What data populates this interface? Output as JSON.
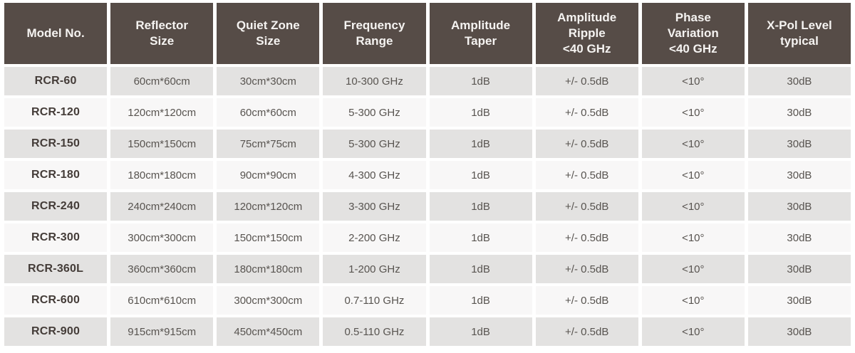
{
  "colors": {
    "header_bg": "#564c47",
    "header_text": "#f5f3f1",
    "row_odd_bg": "#e3e2e1",
    "row_even_bg": "#f8f7f7",
    "model_text": "#443c38",
    "cell_text": "#585450",
    "page_bg": "#ffffff"
  },
  "table": {
    "columns": [
      {
        "key": "model",
        "label": "Model No."
      },
      {
        "key": "reflector_size",
        "label": "Reflector\nSize"
      },
      {
        "key": "quiet_zone_size",
        "label": "Quiet Zone\nSize"
      },
      {
        "key": "frequency_range",
        "label": "Frequency\nRange"
      },
      {
        "key": "amplitude_taper",
        "label": "Amplitude\nTaper"
      },
      {
        "key": "amplitude_ripple",
        "label": "Amplitude\nRipple\n<40 GHz"
      },
      {
        "key": "phase_variation",
        "label": "Phase\nVariation\n<40 GHz"
      },
      {
        "key": "xpol_level",
        "label": "X-Pol Level\ntypical"
      }
    ],
    "rows": [
      {
        "model": "RCR-60",
        "reflector_size": "60cm*60cm",
        "quiet_zone_size": "30cm*30cm",
        "frequency_range": "10-300 GHz",
        "amplitude_taper": "1dB",
        "amplitude_ripple": "+/- 0.5dB",
        "phase_variation": "<10°",
        "xpol_level": "30dB"
      },
      {
        "model": "RCR-120",
        "reflector_size": "120cm*120cm",
        "quiet_zone_size": "60cm*60cm",
        "frequency_range": "5-300 GHz",
        "amplitude_taper": "1dB",
        "amplitude_ripple": "+/- 0.5dB",
        "phase_variation": "<10°",
        "xpol_level": "30dB"
      },
      {
        "model": "RCR-150",
        "reflector_size": "150cm*150cm",
        "quiet_zone_size": "75cm*75cm",
        "frequency_range": "5-300 GHz",
        "amplitude_taper": "1dB",
        "amplitude_ripple": "+/- 0.5dB",
        "phase_variation": "<10°",
        "xpol_level": "30dB"
      },
      {
        "model": "RCR-180",
        "reflector_size": "180cm*180cm",
        "quiet_zone_size": "90cm*90cm",
        "frequency_range": "4-300 GHz",
        "amplitude_taper": "1dB",
        "amplitude_ripple": "+/- 0.5dB",
        "phase_variation": "<10°",
        "xpol_level": "30dB"
      },
      {
        "model": "RCR-240",
        "reflector_size": "240cm*240cm",
        "quiet_zone_size": "120cm*120cm",
        "frequency_range": "3-300 GHz",
        "amplitude_taper": "1dB",
        "amplitude_ripple": "+/- 0.5dB",
        "phase_variation": "<10°",
        "xpol_level": "30dB"
      },
      {
        "model": "RCR-300",
        "reflector_size": "300cm*300cm",
        "quiet_zone_size": "150cm*150cm",
        "frequency_range": "2-200 GHz",
        "amplitude_taper": "1dB",
        "amplitude_ripple": "+/- 0.5dB",
        "phase_variation": "<10°",
        "xpol_level": "30dB"
      },
      {
        "model": "RCR-360L",
        "reflector_size": "360cm*360cm",
        "quiet_zone_size": "180cm*180cm",
        "frequency_range": "1-200 GHz",
        "amplitude_taper": "1dB",
        "amplitude_ripple": "+/- 0.5dB",
        "phase_variation": "<10°",
        "xpol_level": "30dB"
      },
      {
        "model": "RCR-600",
        "reflector_size": "610cm*610cm",
        "quiet_zone_size": "300cm*300cm",
        "frequency_range": "0.7-110 GHz",
        "amplitude_taper": "1dB",
        "amplitude_ripple": "+/- 0.5dB",
        "phase_variation": "<10°",
        "xpol_level": "30dB"
      },
      {
        "model": "RCR-900",
        "reflector_size": "915cm*915cm",
        "quiet_zone_size": "450cm*450cm",
        "frequency_range": "0.5-110 GHz",
        "amplitude_taper": "1dB",
        "amplitude_ripple": "+/- 0.5dB",
        "phase_variation": "<10°",
        "xpol_level": "30dB"
      }
    ]
  }
}
